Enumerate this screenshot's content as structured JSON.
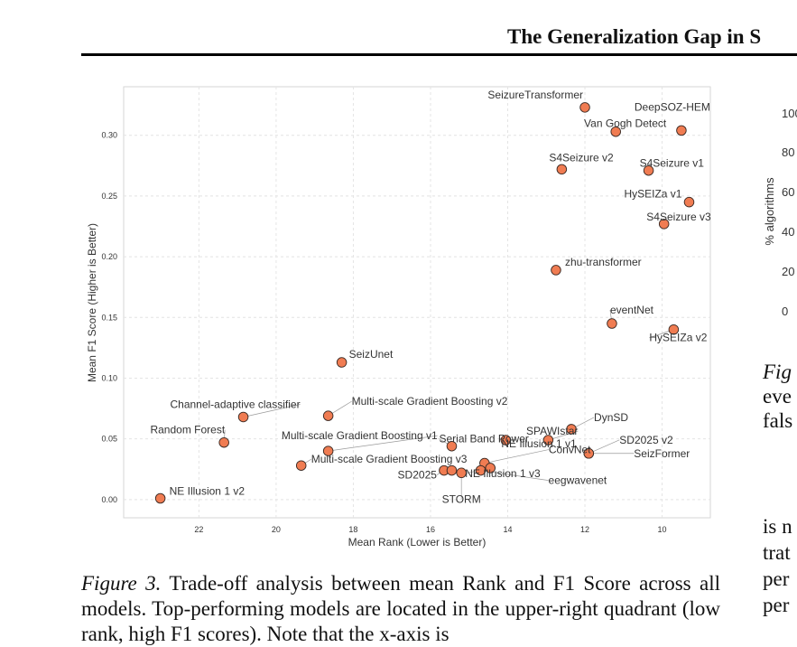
{
  "header": {
    "running_title": "The Generalization Gap in S"
  },
  "figure3": {
    "caption_label": "Figure 3.",
    "caption_text": "Trade-off analysis between mean Rank and F1 Score across all models. Top-performing models are located in the upper-right quadrant (low rank, high F1 scores). Note that the x-axis is"
  },
  "chart_data": {
    "type": "scatter",
    "xlabel": "Mean Rank (Lower is Better)",
    "ylabel": "Mean F1 Score (Higher is Better)",
    "x_inverted": true,
    "xlim": [
      23.95,
      8.75
    ],
    "ylim": [
      -0.015,
      0.34
    ],
    "xticks": [
      22,
      20,
      18,
      16,
      14,
      12,
      10
    ],
    "yticks": [
      0.0,
      0.05,
      0.1,
      0.15,
      0.2,
      0.25,
      0.3
    ],
    "ytick_labels": [
      "0.00",
      "0.05",
      "0.10",
      "0.15",
      "0.20",
      "0.25",
      "0.30"
    ],
    "grid": true,
    "marker_color": "#f07c52",
    "points": [
      {
        "label": "SeizureTransformer",
        "x": 12.0,
        "y": 0.323
      },
      {
        "label": "DeepSOZ-HEM",
        "x": 9.5,
        "y": 0.304
      },
      {
        "label": "Van Gogh Detect",
        "x": 11.2,
        "y": 0.303
      },
      {
        "label": "S4Seizure v2",
        "x": 12.6,
        "y": 0.272
      },
      {
        "label": "S4Seizure v1",
        "x": 10.35,
        "y": 0.271
      },
      {
        "label": "HySEIZa v1",
        "x": 9.3,
        "y": 0.245
      },
      {
        "label": "S4Seizure v3",
        "x": 9.95,
        "y": 0.227
      },
      {
        "label": "zhu-transformer",
        "x": 12.75,
        "y": 0.189
      },
      {
        "label": "eventNet",
        "x": 11.3,
        "y": 0.145
      },
      {
        "label": "HySEIZa v2",
        "x": 9.7,
        "y": 0.14
      },
      {
        "label": "SeizUnet",
        "x": 18.3,
        "y": 0.113
      },
      {
        "label": "Channel-adaptive classifier",
        "x": 20.85,
        "y": 0.068
      },
      {
        "label": "Multi-scale Gradient Boosting v2",
        "x": 18.65,
        "y": 0.069
      },
      {
        "label": "Random Forest",
        "x": 21.35,
        "y": 0.047
      },
      {
        "label": "Multi-scale Gradient Boosting v1",
        "x": 18.65,
        "y": 0.04
      },
      {
        "label": "Multi-scale Gradient Boosting v3",
        "x": 19.35,
        "y": 0.028
      },
      {
        "label": "DynSD",
        "x": 12.35,
        "y": 0.058
      },
      {
        "label": "SPAWIstar",
        "x": 12.95,
        "y": 0.049
      },
      {
        "label": "Serial Band Power",
        "x": 15.45,
        "y": 0.044
      },
      {
        "label": "NE Illusion 1 v1",
        "x": 14.05,
        "y": 0.049
      },
      {
        "label": "SD2025 v2",
        "x": 11.9,
        "y": 0.038
      },
      {
        "label": "SeizFormer",
        "x": 11.9,
        "y": 0.038
      },
      {
        "label": "ConvNet",
        "x": 14.6,
        "y": 0.03
      },
      {
        "label": "NE Illusion 1 v3",
        "x": 14.45,
        "y": 0.026
      },
      {
        "label": "eegwavenet",
        "x": 14.7,
        "y": 0.024
      },
      {
        "label": "SD2025",
        "x": 15.65,
        "y": 0.024
      },
      {
        "label": "STORM",
        "x": 15.2,
        "y": 0.022
      },
      {
        "label": "",
        "x": 15.45,
        "y": 0.024
      },
      {
        "label": "NE Illusion 1 v2",
        "x": 23.0,
        "y": 0.001
      }
    ]
  },
  "right_figure": {
    "ylabel": "% algorithms",
    "ytick_labels": [
      "100",
      "80",
      "60",
      "40",
      "20",
      "0"
    ],
    "caption_lines": [
      "Fig",
      "eve",
      "fals"
    ]
  },
  "right_body": {
    "lines": [
      "is n",
      "trat",
      "per",
      "per"
    ]
  }
}
